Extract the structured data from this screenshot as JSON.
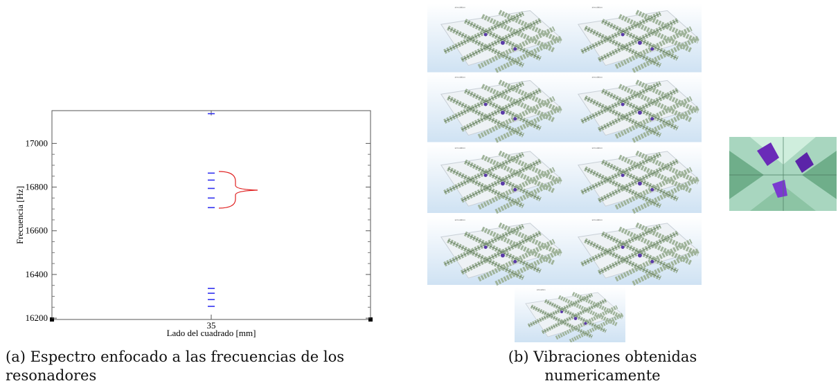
{
  "chart_data": {
    "type": "scatter",
    "x_label": "Lado del cuadrado [mm]",
    "y_label": "Frecuencia [Hz]",
    "x": [
      35,
      35,
      35,
      35,
      35,
      35,
      35,
      35,
      35,
      35
    ],
    "y": [
      17136,
      16864,
      16832,
      16794,
      16750,
      16706,
      16336,
      16314,
      16285,
      16254
    ],
    "color": "#3030f0",
    "xlim": [
      30,
      40
    ],
    "xticks": [
      35
    ],
    "ylim": [
      16194,
      17150
    ],
    "yticks": [
      16200,
      16400,
      16600,
      16800,
      17000
    ]
  },
  "captions": {
    "a": "(a) Espectro enfocado a las frecuencias de los resonadores",
    "b": "(b) Vibraciones obtenidas numericamente"
  }
}
